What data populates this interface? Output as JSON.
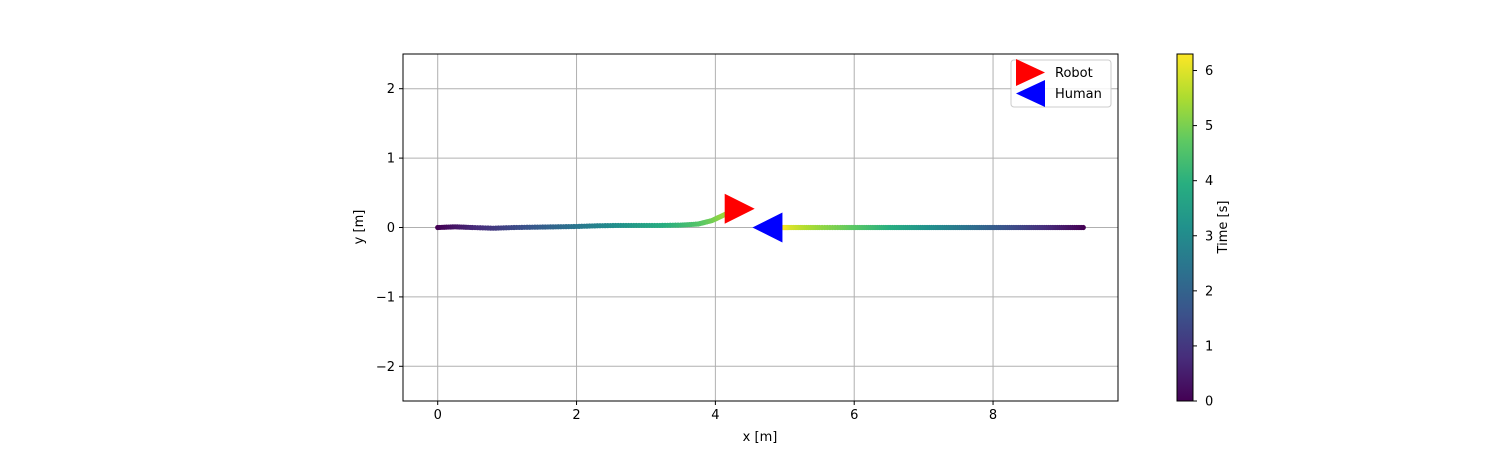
{
  "chart_data": {
    "type": "scatter",
    "xlabel": "x [m]",
    "ylabel": "y [m]",
    "xlim": [
      -0.5,
      9.8
    ],
    "ylim": [
      -2.5,
      2.5
    ],
    "xticks": [
      0,
      2,
      4,
      6,
      8
    ],
    "yticks": [
      -2,
      -1,
      0,
      1,
      2
    ],
    "grid": true,
    "legend_position": "top-right",
    "colormap": "viridis",
    "colorbar": {
      "label": "Time [s]",
      "range": [
        0,
        6.3
      ],
      "ticks": [
        0,
        1,
        2,
        3,
        4,
        5,
        6
      ]
    },
    "series": [
      {
        "name": "Robot",
        "marker": "right-triangle",
        "marker_color": "#ff0000",
        "marker_position": [
          4.35,
          0.27
        ],
        "trajectory": [
          {
            "t": 0.0,
            "x": 0.0,
            "y": 0.0
          },
          {
            "t": 0.35,
            "x": 0.25,
            "y": 0.01
          },
          {
            "t": 0.7,
            "x": 0.5,
            "y": 0.0
          },
          {
            "t": 1.05,
            "x": 0.8,
            "y": -0.01
          },
          {
            "t": 1.4,
            "x": 1.1,
            "y": 0.0
          },
          {
            "t": 1.75,
            "x": 1.4,
            "y": 0.005
          },
          {
            "t": 2.1,
            "x": 1.7,
            "y": 0.01
          },
          {
            "t": 2.45,
            "x": 2.0,
            "y": 0.015
          },
          {
            "t": 2.8,
            "x": 2.3,
            "y": 0.025
          },
          {
            "t": 3.15,
            "x": 2.6,
            "y": 0.03
          },
          {
            "t": 3.5,
            "x": 2.9,
            "y": 0.03
          },
          {
            "t": 3.85,
            "x": 3.2,
            "y": 0.03
          },
          {
            "t": 4.2,
            "x": 3.5,
            "y": 0.035
          },
          {
            "t": 4.55,
            "x": 3.75,
            "y": 0.05
          },
          {
            "t": 4.9,
            "x": 3.95,
            "y": 0.1
          },
          {
            "t": 5.25,
            "x": 4.1,
            "y": 0.17
          },
          {
            "t": 5.6,
            "x": 4.25,
            "y": 0.24
          }
        ]
      },
      {
        "name": "Human",
        "marker": "left-triangle",
        "marker_color": "#0000ff",
        "marker_position": [
          4.75,
          0.0
        ],
        "trajectory": [
          {
            "t": 0.0,
            "x": 9.3,
            "y": 0.0
          },
          {
            "t": 0.35,
            "x": 9.05,
            "y": 0.0
          },
          {
            "t": 0.7,
            "x": 8.8,
            "y": 0.0
          },
          {
            "t": 1.05,
            "x": 8.55,
            "y": 0.0
          },
          {
            "t": 1.4,
            "x": 8.3,
            "y": 0.0
          },
          {
            "t": 1.75,
            "x": 8.05,
            "y": 0.0
          },
          {
            "t": 2.1,
            "x": 7.8,
            "y": 0.0
          },
          {
            "t": 2.45,
            "x": 7.55,
            "y": 0.0
          },
          {
            "t": 2.8,
            "x": 7.3,
            "y": 0.0
          },
          {
            "t": 3.15,
            "x": 7.05,
            "y": 0.0
          },
          {
            "t": 3.5,
            "x": 6.8,
            "y": 0.0
          },
          {
            "t": 3.85,
            "x": 6.55,
            "y": 0.0
          },
          {
            "t": 4.2,
            "x": 6.3,
            "y": 0.0
          },
          {
            "t": 4.55,
            "x": 6.05,
            "y": 0.0
          },
          {
            "t": 4.9,
            "x": 5.8,
            "y": 0.0
          },
          {
            "t": 5.25,
            "x": 5.5,
            "y": 0.0
          },
          {
            "t": 5.6,
            "x": 5.25,
            "y": 0.0
          },
          {
            "t": 5.95,
            "x": 5.05,
            "y": 0.0
          },
          {
            "t": 6.3,
            "x": 4.95,
            "y": 0.0
          }
        ]
      }
    ]
  }
}
